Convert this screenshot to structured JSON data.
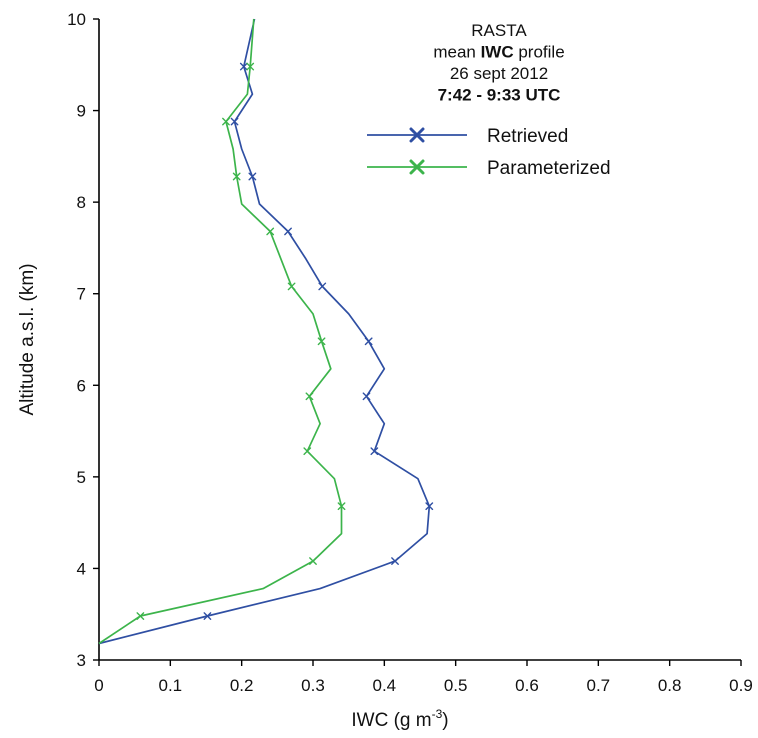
{
  "chart_data": {
    "type": "line",
    "title_lines": [
      {
        "prefix": "RASTA",
        "bold": "",
        "suffix": "",
        "weight": "normal"
      },
      {
        "prefix": "mean ",
        "bold": "IWC",
        "suffix": " profile",
        "weight": "normal"
      },
      {
        "prefix": "26 sept  2012",
        "bold": "",
        "suffix": "",
        "weight": "normal"
      },
      {
        "prefix": "7:42 - 9:33 UTC",
        "bold": "",
        "suffix": "",
        "weight": "bold"
      }
    ],
    "xlabel": {
      "base": "IWC (g m",
      "sup": "-3",
      "tail": ")"
    },
    "ylabel": "Altitude a.s.l. (km)",
    "xlim": [
      0,
      0.9
    ],
    "ylim": [
      3,
      10
    ],
    "x_ticks": [
      "0",
      "0.1",
      "0.2",
      "0.3",
      "0.4",
      "0.5",
      "0.6",
      "0.7",
      "0.8",
      "0.9"
    ],
    "y_ticks": [
      "3",
      "4",
      "5",
      "6",
      "7",
      "8",
      "9",
      "10"
    ],
    "x_tick_values": [
      0,
      0.1,
      0.2,
      0.3,
      0.4,
      0.5,
      0.6,
      0.7,
      0.8,
      0.9
    ],
    "y_tick_values": [
      3,
      4,
      5,
      6,
      7,
      8,
      9,
      10
    ],
    "grid": false,
    "legend_position": "top-right",
    "series": [
      {
        "name": "Retrieved",
        "color": "#2f4fa3",
        "marker": "x",
        "points": [
          [
            0.0,
            3.18
          ],
          [
            0.152,
            3.48
          ],
          [
            0.31,
            3.78
          ],
          [
            0.415,
            4.08
          ],
          [
            0.46,
            4.38
          ],
          [
            0.463,
            4.68
          ],
          [
            0.447,
            4.98
          ],
          [
            0.386,
            5.28
          ],
          [
            0.4,
            5.58
          ],
          [
            0.375,
            5.88
          ],
          [
            0.4,
            6.18
          ],
          [
            0.378,
            6.48
          ],
          [
            0.35,
            6.78
          ],
          [
            0.313,
            7.08
          ],
          [
            0.29,
            7.38
          ],
          [
            0.265,
            7.68
          ],
          [
            0.225,
            7.98
          ],
          [
            0.215,
            8.28
          ],
          [
            0.2,
            8.58
          ],
          [
            0.19,
            8.88
          ],
          [
            0.215,
            9.18
          ],
          [
            0.203,
            9.48
          ],
          [
            0.218,
            10.0
          ]
        ],
        "marker_indices": [
          1,
          3,
          5,
          7,
          9,
          11,
          13,
          15,
          17,
          19,
          21
        ]
      },
      {
        "name": "Parameterized",
        "color": "#3cb44b",
        "marker": "x",
        "points": [
          [
            0.0,
            3.18
          ],
          [
            0.058,
            3.48
          ],
          [
            0.23,
            3.78
          ],
          [
            0.3,
            4.08
          ],
          [
            0.34,
            4.38
          ],
          [
            0.34,
            4.68
          ],
          [
            0.33,
            4.98
          ],
          [
            0.292,
            5.28
          ],
          [
            0.31,
            5.58
          ],
          [
            0.295,
            5.88
          ],
          [
            0.325,
            6.18
          ],
          [
            0.312,
            6.48
          ],
          [
            0.3,
            6.78
          ],
          [
            0.27,
            7.08
          ],
          [
            0.255,
            7.38
          ],
          [
            0.24,
            7.68
          ],
          [
            0.2,
            7.98
          ],
          [
            0.193,
            8.28
          ],
          [
            0.188,
            8.58
          ],
          [
            0.178,
            8.88
          ],
          [
            0.208,
            9.18
          ],
          [
            0.212,
            9.48
          ],
          [
            0.217,
            10.0
          ]
        ],
        "marker_indices": [
          1,
          3,
          5,
          7,
          9,
          11,
          13,
          15,
          17,
          19,
          21
        ]
      }
    ]
  }
}
